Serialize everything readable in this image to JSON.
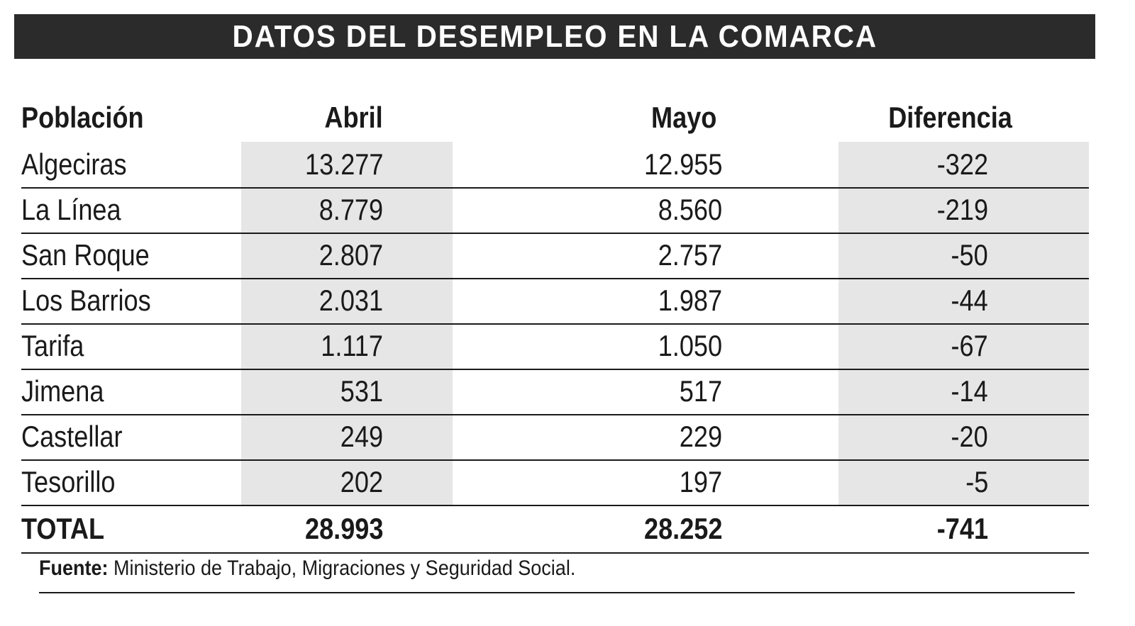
{
  "title": "DATOS DEL DESEMPLEO EN LA COMARCA",
  "chart_data": {
    "type": "table",
    "title": "DATOS DEL DESEMPLEO EN LA COMARCA",
    "columns": [
      "Población",
      "Abril",
      "Mayo",
      "Diferencia"
    ],
    "rows": [
      [
        "Algeciras",
        "13.277",
        "12.955",
        "-322"
      ],
      [
        "La Línea",
        "8.779",
        "8.560",
        "-219"
      ],
      [
        "San Roque",
        "2.807",
        "2.757",
        "-50"
      ],
      [
        "Los Barrios",
        "2.031",
        "1.987",
        "-44"
      ],
      [
        "Tarifa",
        "1.117",
        "1.050",
        "-67"
      ],
      [
        "Jimena",
        "531",
        "517",
        "-14"
      ],
      [
        "Castellar",
        "249",
        "229",
        "-20"
      ],
      [
        "Tesorillo",
        "202",
        "197",
        "-5"
      ]
    ],
    "total": [
      "TOTAL",
      "28.993",
      "28.252",
      "-741"
    ]
  },
  "footer": {
    "label": "Fuente:",
    "text": " Ministerio de Trabajo, Migraciones y Seguridad Social."
  },
  "colors": {
    "title_bar": "#2b2b2b",
    "shaded_column": "#e6e6e6"
  }
}
